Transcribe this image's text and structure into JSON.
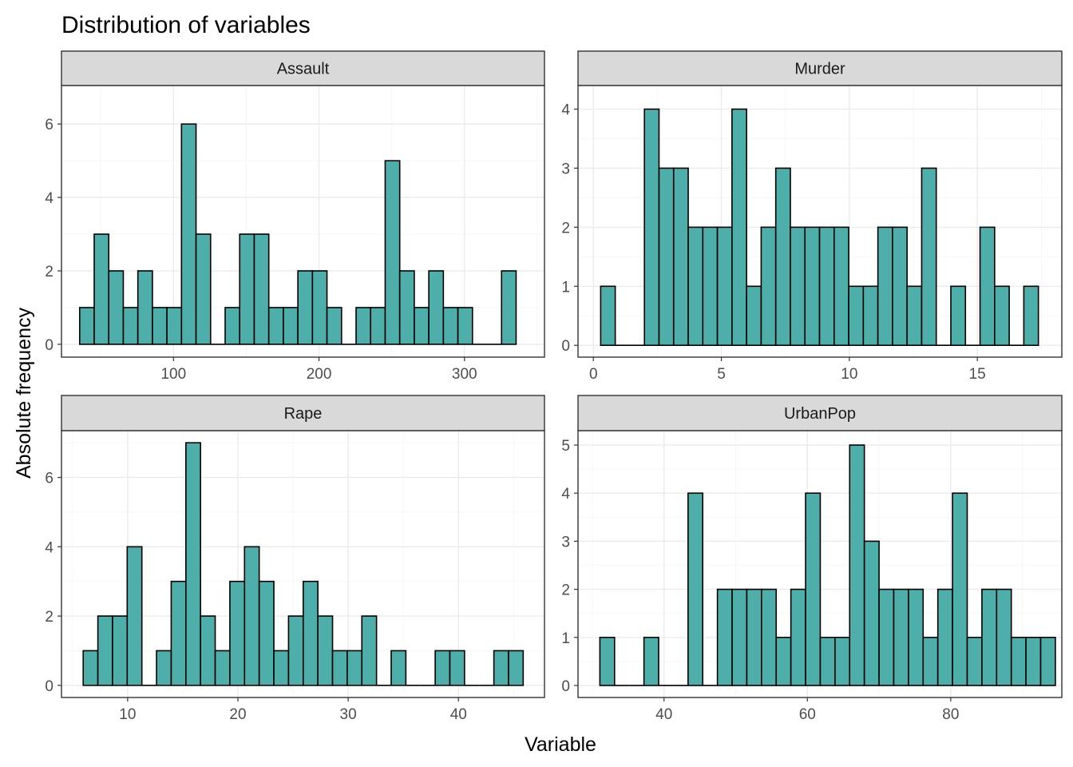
{
  "title": "Distribution of variables",
  "xlabel": "Variable",
  "ylabel": "Absolute frequency",
  "colors": {
    "bar_fill": "#4EAEAA",
    "bar_stroke": "#000000",
    "strip": "#D9D9D9"
  },
  "chart_data": [
    {
      "type": "bar",
      "facet": "Assault",
      "bin_start": 35.5,
      "bin_width": 10,
      "counts": [
        1,
        3,
        2,
        1,
        2,
        1,
        1,
        6,
        3,
        0,
        1,
        3,
        3,
        1,
        1,
        2,
        2,
        1,
        0,
        1,
        1,
        5,
        2,
        1,
        2,
        1,
        1,
        0,
        0,
        2
      ],
      "xlim": [
        23,
        355
      ],
      "ylim": [
        -0.35,
        7.05
      ],
      "xticks": [
        100,
        200,
        300
      ],
      "yticks": [
        0,
        2,
        4,
        6
      ],
      "grid": true
    },
    {
      "type": "bar",
      "facet": "Murder",
      "bin_start": 0.285,
      "bin_width": 0.57,
      "counts": [
        1,
        0,
        0,
        4,
        3,
        3,
        2,
        2,
        2,
        4,
        1,
        2,
        3,
        2,
        2,
        2,
        2,
        1,
        1,
        2,
        2,
        1,
        3,
        0,
        1,
        0,
        2,
        1,
        0,
        1
      ],
      "xlim": [
        -0.6,
        18.3
      ],
      "ylim": [
        -0.2,
        4.4
      ],
      "xticks": [
        0,
        5,
        10,
        15
      ],
      "yticks": [
        0,
        1,
        2,
        3,
        4
      ],
      "grid": true
    },
    {
      "type": "bar",
      "facet": "Rape",
      "bin_start": 5.97,
      "bin_width": 1.33,
      "counts": [
        1,
        2,
        2,
        4,
        0,
        1,
        3,
        7,
        2,
        1,
        3,
        4,
        3,
        1,
        2,
        3,
        2,
        1,
        1,
        2,
        0,
        1,
        0,
        0,
        1,
        1,
        0,
        0,
        1,
        1
      ],
      "xlim": [
        4,
        47.8
      ],
      "ylim": [
        -0.35,
        7.35
      ],
      "xticks": [
        10,
        20,
        30,
        40
      ],
      "yticks": [
        0,
        2,
        4,
        6
      ],
      "grid": true
    },
    {
      "type": "bar",
      "facet": "UrbanPop",
      "bin_start": 31.05,
      "bin_width": 2.05,
      "counts": [
        1,
        0,
        0,
        1,
        0,
        0,
        4,
        0,
        2,
        2,
        2,
        2,
        1,
        2,
        4,
        1,
        1,
        5,
        3,
        2,
        2,
        2,
        1,
        2,
        4,
        1,
        2,
        2,
        1,
        1,
        1
      ],
      "xlim": [
        28,
        95.5
      ],
      "ylim": [
        -0.25,
        5.3
      ],
      "xticks": [
        40,
        60,
        80
      ],
      "yticks": [
        0,
        1,
        2,
        3,
        4,
        5
      ],
      "grid": true
    }
  ]
}
